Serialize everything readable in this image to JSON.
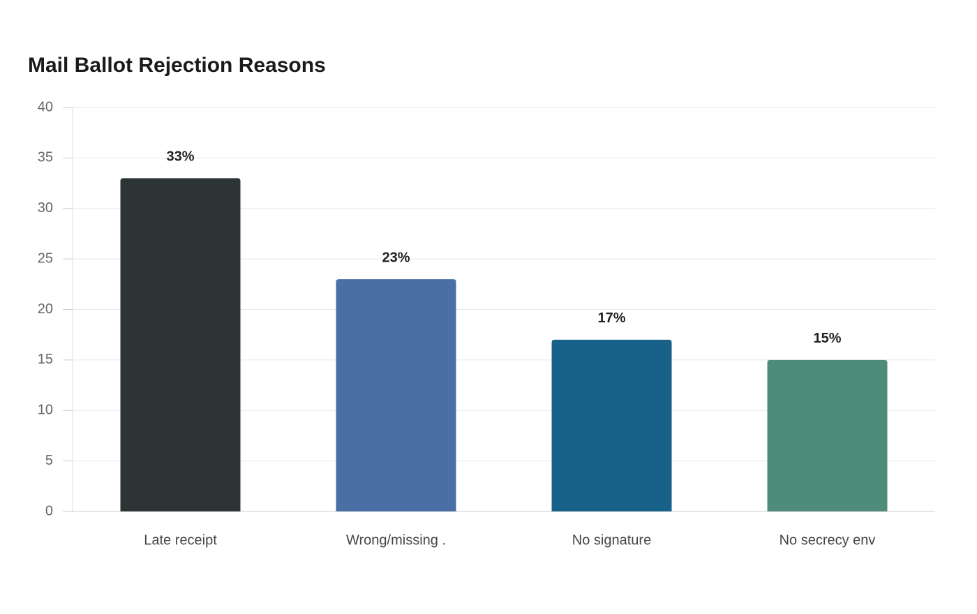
{
  "chart_data": {
    "type": "bar",
    "title": "Mail Ballot Rejection Reasons",
    "categories": [
      "Late receipt",
      "Wrong/missing .",
      "No signature",
      "No secrecy env"
    ],
    "values": [
      33,
      23,
      17,
      15
    ],
    "value_labels": [
      "33%",
      "23%",
      "17%",
      "15%"
    ],
    "colors": [
      "#2d3436",
      "#4a6fa5",
      "#186189",
      "#4e8c79"
    ],
    "ylim": [
      0,
      40
    ],
    "yticks": [
      0,
      5,
      10,
      15,
      20,
      25,
      30,
      35,
      40
    ],
    "grid": true
  }
}
